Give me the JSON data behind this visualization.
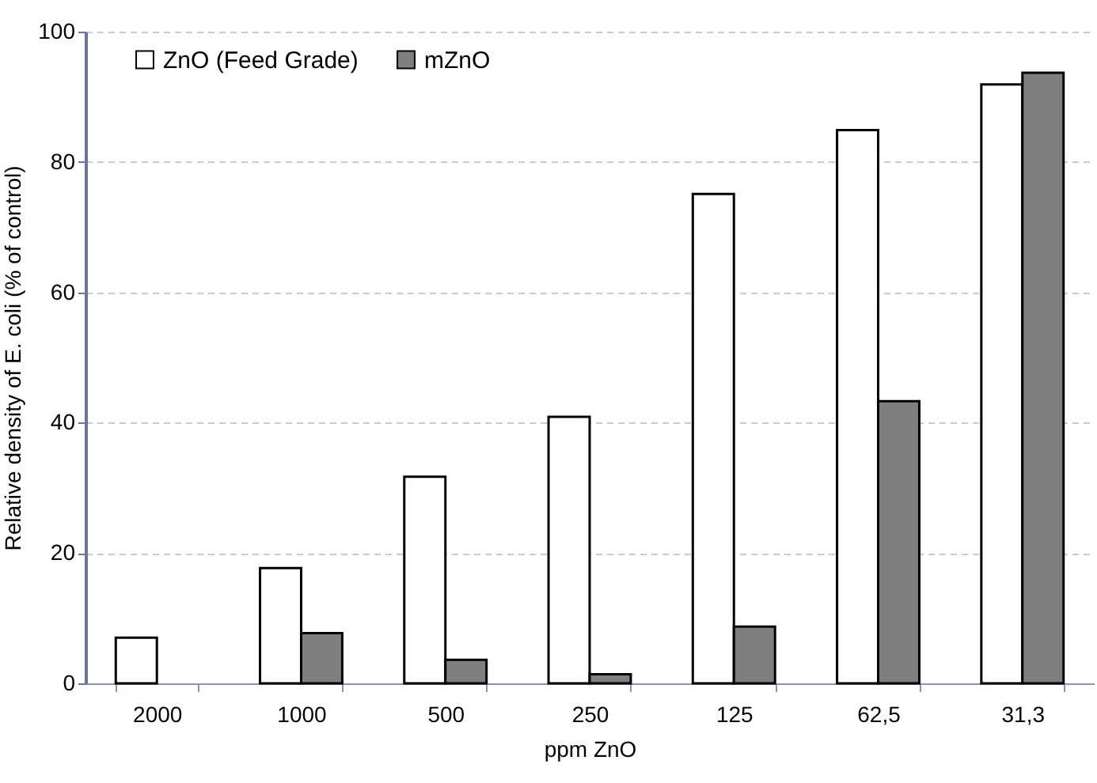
{
  "chart_data": {
    "type": "bar",
    "xlabel": "ppm ZnO",
    "ylabel": "Relative density of E. coli (% of control)",
    "categories": [
      "2000",
      "1000",
      "500",
      "250",
      "125",
      "62,5",
      "31,3"
    ],
    "series": [
      {
        "name": "ZnO (Feed Grade)",
        "color": "#ffffff",
        "values": [
          7.0,
          17.7,
          31.7,
          40.9,
          75.1,
          84.9,
          91.9
        ]
      },
      {
        "name": "mZnO",
        "color": "#7f7f7f",
        "values": [
          null,
          7.7,
          3.6,
          1.4,
          8.7,
          43.3,
          93.7
        ]
      }
    ],
    "ylim": [
      0,
      100
    ],
    "yticks": [
      0,
      20,
      40,
      60,
      80,
      100
    ],
    "grid": "y",
    "legend": "top left"
  }
}
